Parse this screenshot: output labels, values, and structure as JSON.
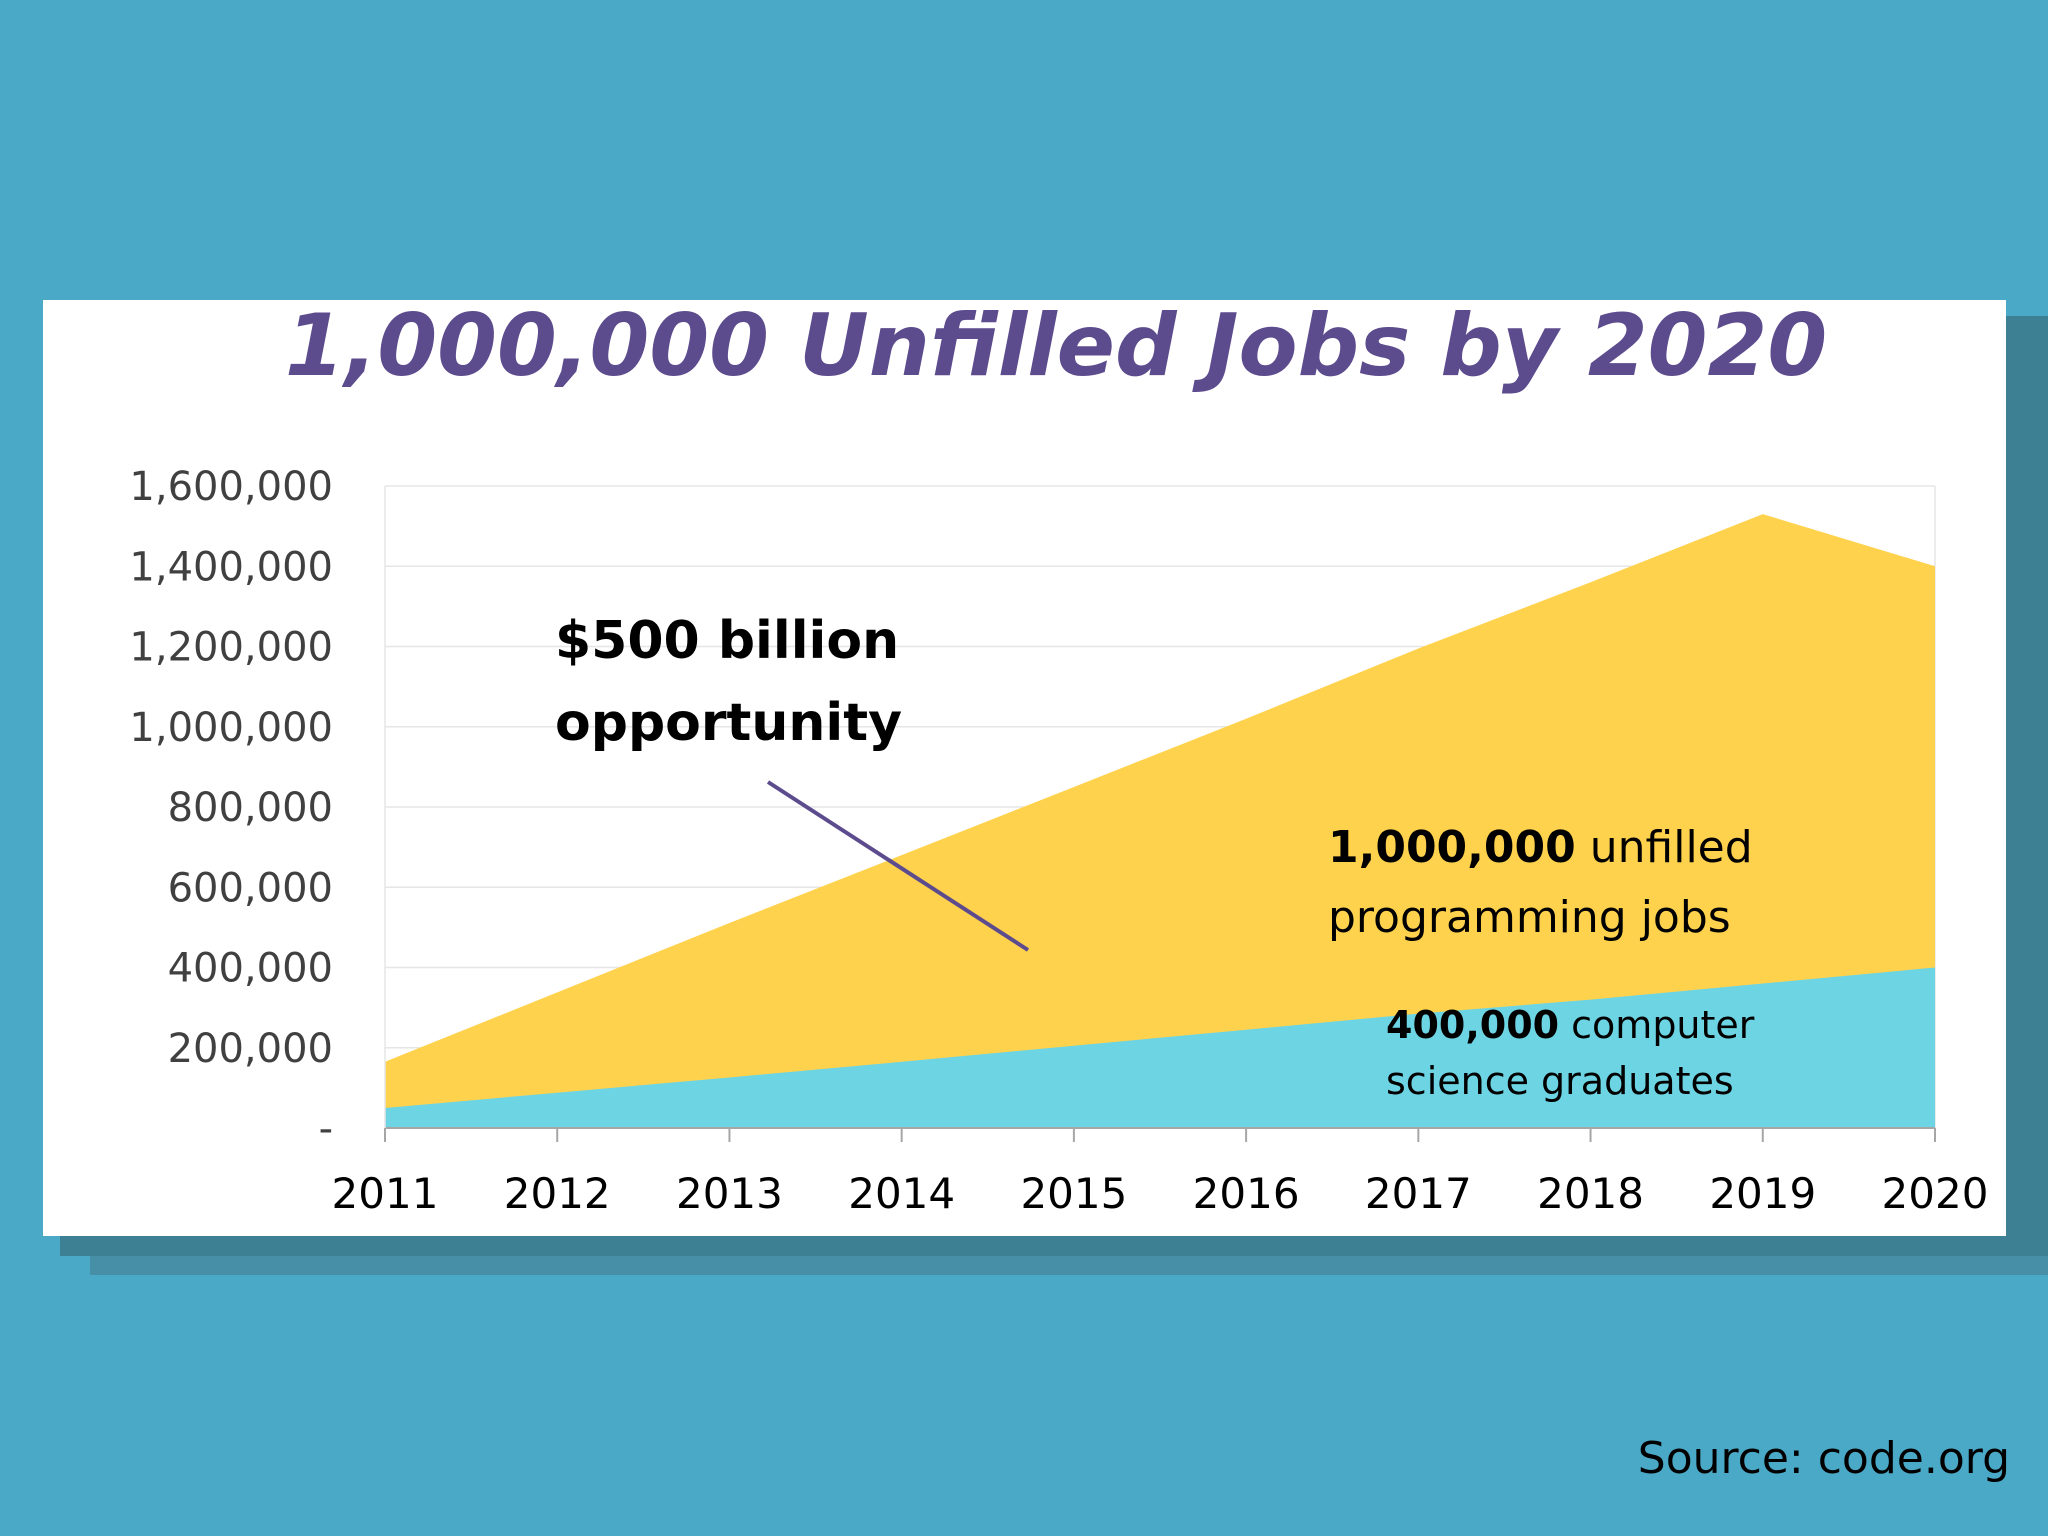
{
  "source": "Source: code.org",
  "colors": {
    "background": "#4aa9c6",
    "title": "#5c4b8d",
    "unfilled_area": "#ffd24d",
    "graduates_area": "#6dd4e3",
    "arrow": "#5c4b8d"
  },
  "annotations": {
    "opportunity_line1": "$500 billion",
    "opportunity_line2": "opportunity",
    "unfilled_bold": "1,000,000",
    "unfilled_rest": " unfilled",
    "unfilled_line2": "programming jobs",
    "grads_bold": "400,000",
    "grads_rest": " computer",
    "grads_line2": "science graduates"
  },
  "chart_data": {
    "type": "area",
    "title": "1,000,000 Unfilled Jobs by 2020",
    "xlabel": "",
    "ylabel": "",
    "x": [
      2011,
      2012,
      2013,
      2014,
      2015,
      2016,
      2017,
      2018,
      2019,
      2020
    ],
    "x_tick_labels": [
      "2011",
      "2012",
      "2013",
      "2014",
      "2015",
      "2016",
      "2017",
      "2018",
      "2019",
      "2020"
    ],
    "y_tick_labels": [
      "-",
      "200,000",
      "400,000",
      "600,000",
      "800,000",
      "1,000,000",
      "1,200,000",
      "1,400,000",
      "1,600,000"
    ],
    "y_ticks": [
      0,
      200000,
      400000,
      600000,
      800000,
      1000000,
      1200000,
      1400000,
      1600000
    ],
    "ylim": [
      0,
      1600000
    ],
    "grid": true,
    "stacked": true,
    "series": [
      {
        "values": [
          50000,
          88000,
          126000,
          165000,
          205000,
          245000,
          285000,
          320000,
          360000,
          400000
        ]
      },
      {
        "values": [
          115000,
          250000,
          385000,
          515000,
          645000,
          775000,
          910000,
          1040000,
          1170000,
          1000000
        ]
      }
    ],
    "totals": [
      165000,
      338000,
      511000,
      680000,
      850000,
      1020000,
      1195000,
      1360000,
      1530000,
      1400000
    ]
  }
}
